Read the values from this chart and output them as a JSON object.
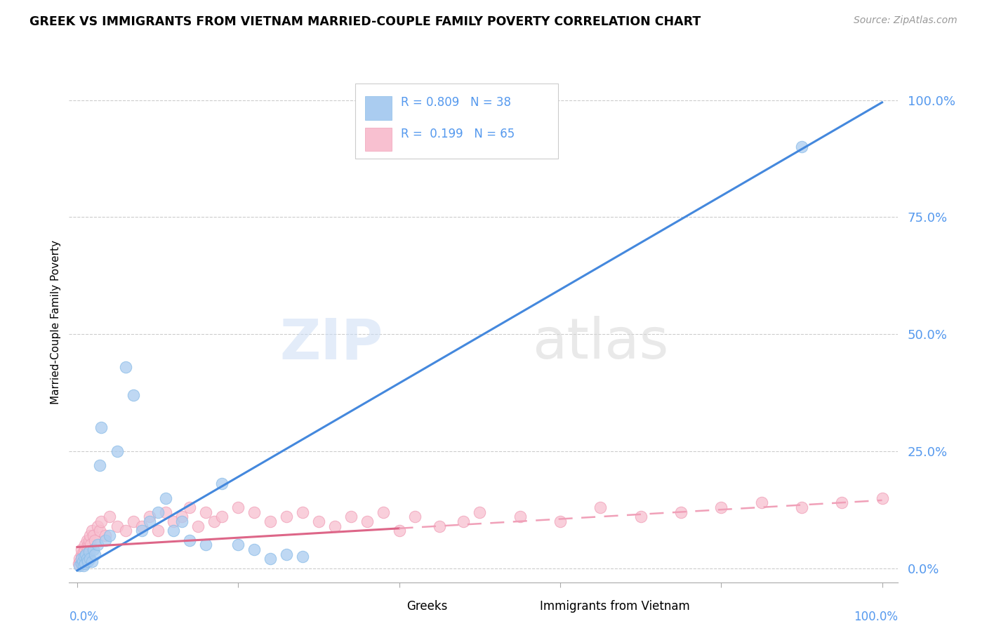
{
  "title": "GREEK VS IMMIGRANTS FROM VIETNAM MARRIED-COUPLE FAMILY POVERTY CORRELATION CHART",
  "source": "Source: ZipAtlas.com",
  "ylabel": "Married-Couple Family Poverty",
  "ytick_labels": [
    "0.0%",
    "25.0%",
    "50.0%",
    "75.0%",
    "100.0%"
  ],
  "ytick_values": [
    0,
    25,
    50,
    75,
    100
  ],
  "legend_R_greek": "R = 0.809",
  "legend_N_greek": "N = 38",
  "legend_R_vietnam": "R =  0.199",
  "legend_N_vietnam": "N = 65",
  "legend_bottom_1": "Greeks",
  "legend_bottom_2": "Immigrants from Vietnam",
  "greek_color": "#8bbde8",
  "vietnam_color": "#f0a0b8",
  "greek_face": "#aaccf0",
  "vietnam_face": "#f8c0d0",
  "blue_line_color": "#4488dd",
  "pink_line_color": "#dd6688",
  "pink_dash_color": "#f0a0b8",
  "background_color": "#ffffff",
  "grid_color": "#cccccc",
  "tick_color": "#5599ee",
  "title_color": "#000000",
  "source_color": "#999999",
  "N_greek": 38,
  "N_vietnam": 65,
  "greek_x": [
    0.3,
    0.5,
    0.5,
    0.7,
    0.8,
    0.9,
    1.0,
    1.1,
    1.2,
    1.3,
    1.5,
    1.6,
    1.8,
    2.0,
    2.2,
    2.5,
    2.8,
    3.0,
    3.5,
    4.0,
    5.0,
    6.0,
    7.0,
    8.0,
    9.0,
    10.0,
    11.0,
    12.0,
    13.0,
    14.0,
    16.0,
    18.0,
    20.0,
    22.0,
    24.0,
    26.0,
    28.0,
    90.0
  ],
  "greek_y": [
    0.5,
    1.0,
    2.0,
    1.5,
    0.5,
    2.5,
    1.0,
    3.0,
    2.0,
    1.5,
    3.5,
    2.0,
    1.5,
    4.0,
    3.0,
    5.0,
    22.0,
    30.0,
    6.0,
    7.0,
    25.0,
    43.0,
    37.0,
    8.0,
    10.0,
    12.0,
    15.0,
    8.0,
    10.0,
    6.0,
    5.0,
    18.0,
    5.0,
    4.0,
    2.0,
    3.0,
    2.5,
    90.0
  ],
  "vietnam_x": [
    0.2,
    0.3,
    0.4,
    0.5,
    0.5,
    0.6,
    0.7,
    0.8,
    0.9,
    1.0,
    1.0,
    1.1,
    1.2,
    1.3,
    1.4,
    1.5,
    1.6,
    1.7,
    1.8,
    2.0,
    2.2,
    2.5,
    2.8,
    3.0,
    3.5,
    4.0,
    5.0,
    6.0,
    7.0,
    8.0,
    9.0,
    10.0,
    11.0,
    12.0,
    13.0,
    14.0,
    15.0,
    16.0,
    17.0,
    18.0,
    20.0,
    22.0,
    24.0,
    26.0,
    28.0,
    30.0,
    32.0,
    34.0,
    36.0,
    38.0,
    40.0,
    42.0,
    45.0,
    48.0,
    50.0,
    55.0,
    60.0,
    65.0,
    70.0,
    75.0,
    80.0,
    85.0,
    90.0,
    95.0,
    100.0
  ],
  "vietnam_y": [
    1.0,
    2.0,
    1.5,
    3.0,
    4.0,
    2.5,
    1.0,
    3.5,
    2.0,
    4.0,
    5.0,
    3.0,
    6.0,
    4.0,
    5.0,
    6.0,
    7.0,
    5.0,
    8.0,
    7.0,
    6.0,
    9.0,
    8.0,
    10.0,
    7.0,
    11.0,
    9.0,
    8.0,
    10.0,
    9.0,
    11.0,
    8.0,
    12.0,
    10.0,
    11.0,
    13.0,
    9.0,
    12.0,
    10.0,
    11.0,
    13.0,
    12.0,
    10.0,
    11.0,
    12.0,
    10.0,
    9.0,
    11.0,
    10.0,
    12.0,
    8.0,
    11.0,
    9.0,
    10.0,
    12.0,
    11.0,
    10.0,
    13.0,
    11.0,
    12.0,
    13.0,
    14.0,
    13.0,
    14.0,
    15.0
  ]
}
